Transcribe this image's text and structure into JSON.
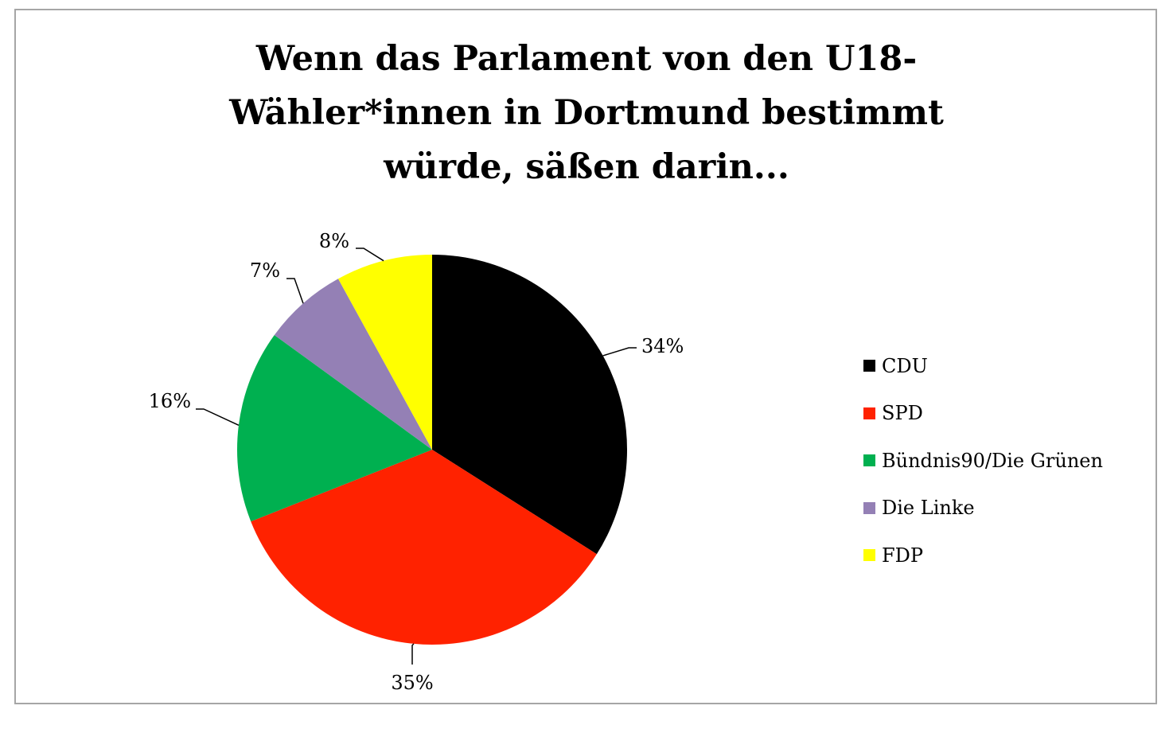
{
  "chart_data": {
    "type": "pie",
    "title_lines": [
      "Wenn das Parlament von den U18-",
      "Wähler*innen in Dortmund bestimmt",
      "würde, säßen darin..."
    ],
    "categories": [
      "CDU",
      "SPD",
      "Bündnis90/Die Grünen",
      "Die Linke",
      "FDP"
    ],
    "values": [
      34,
      35,
      16,
      7,
      8
    ],
    "value_labels": [
      "34%",
      "35%",
      "16%",
      "7%",
      "8%"
    ],
    "colors": [
      "#000000",
      "#ff2200",
      "#00b050",
      "#9480b5",
      "#ffff00"
    ],
    "start": "12 o'clock",
    "direction": "clockwise",
    "legend_position": "right",
    "data_labels": "outside with leader lines"
  }
}
